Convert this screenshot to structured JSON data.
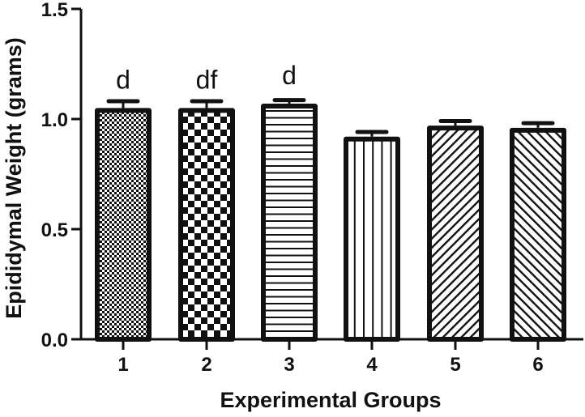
{
  "chart_data": {
    "type": "bar",
    "title": "",
    "xlabel": "Experimental Groups",
    "ylabel": "Epididymal Weight (grams)",
    "ylim": [
      0,
      1.5
    ],
    "yticks": [
      "0.0",
      "0.5",
      "1.0",
      "1.5"
    ],
    "grid": false,
    "legend": null,
    "categories": [
      "1",
      "2",
      "3",
      "4",
      "5",
      "6"
    ],
    "values": [
      1.05,
      1.05,
      1.07,
      0.92,
      0.97,
      0.96
    ],
    "errors": [
      0.02,
      0.02,
      0.005,
      0.01,
      0.01,
      0.01
    ],
    "annotations": [
      "d",
      "df",
      "d",
      "",
      "",
      ""
    ],
    "patterns": [
      "fine-checker",
      "coarse-checker",
      "horizontal-lines",
      "vertical-lines",
      "diagonal-forward",
      "diagonal-backward"
    ]
  },
  "colors": {
    "ink": "#111111",
    "background": "#ffffff"
  }
}
